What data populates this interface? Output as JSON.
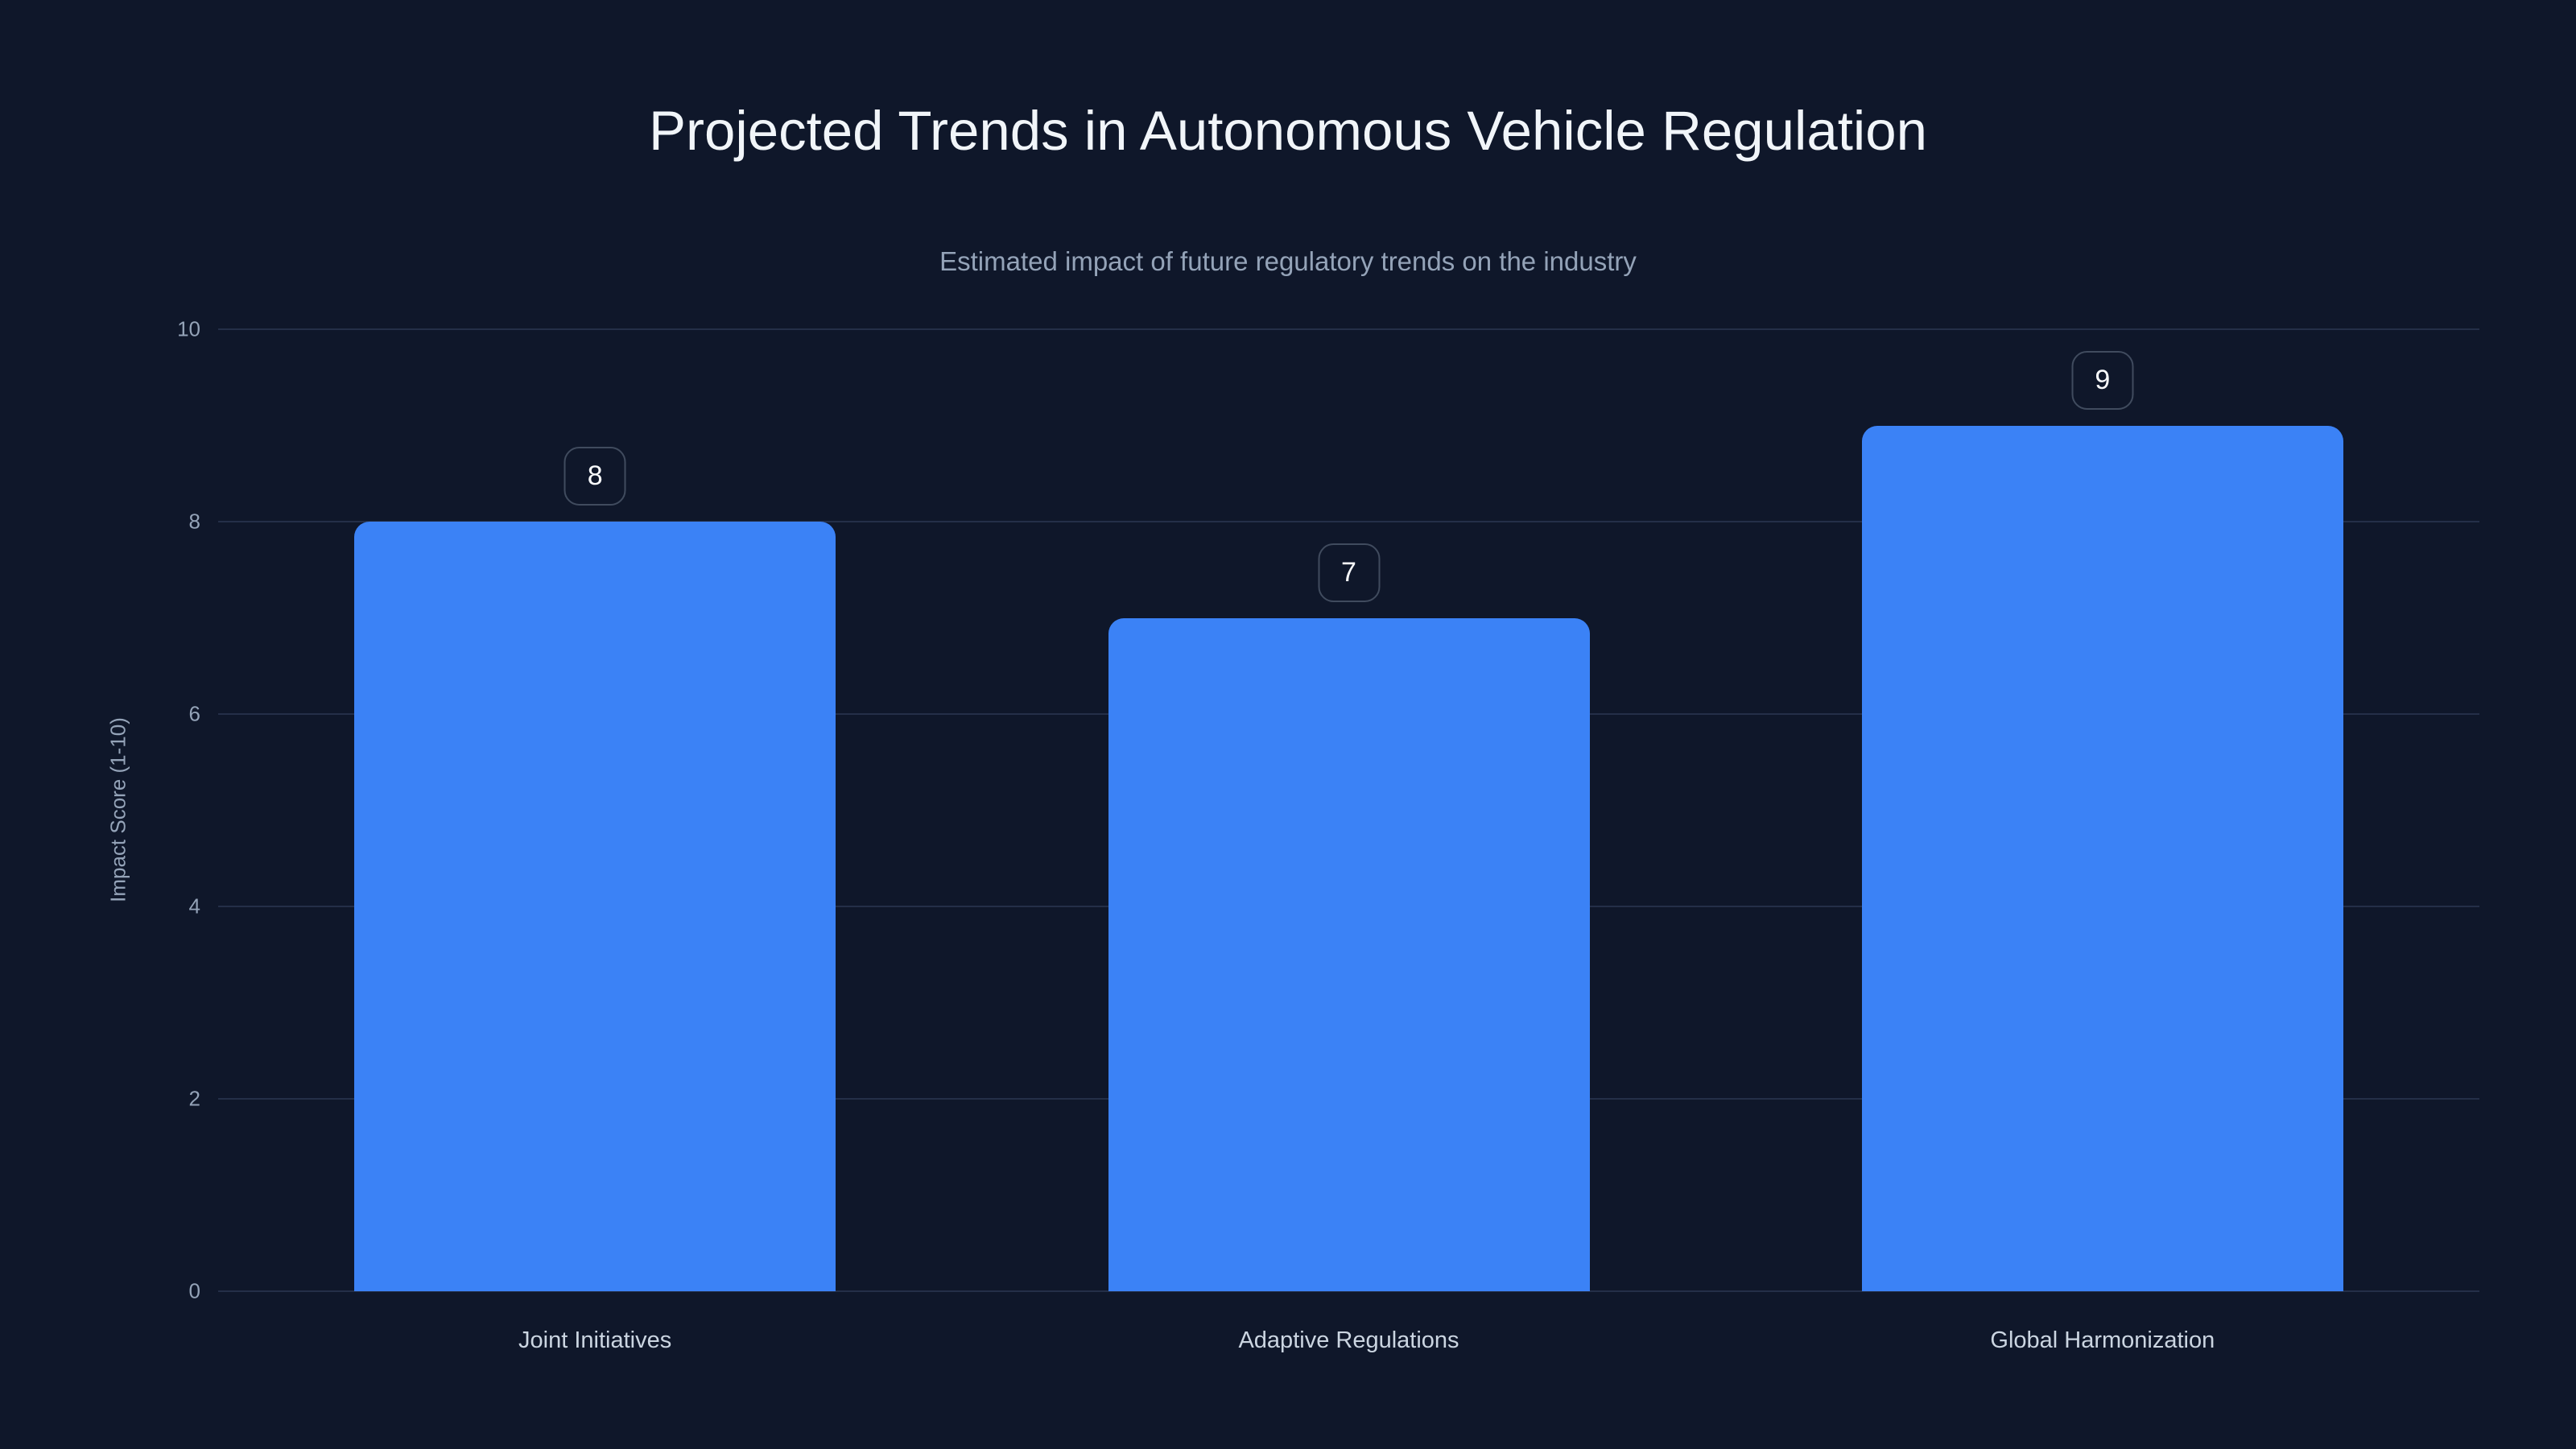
{
  "chart_data": {
    "type": "bar",
    "title": "Projected Trends in Autonomous Vehicle Regulation",
    "subtitle": "Estimated impact of future regulatory trends on the industry",
    "ylabel": "Impact Score (1-10)",
    "xlabel": "",
    "categories": [
      "Joint Initiatives",
      "Adaptive Regulations",
      "Global Harmonization"
    ],
    "values": [
      8,
      7,
      9
    ],
    "data_labels": [
      "8",
      "7",
      "9"
    ],
    "yticks": [
      0,
      2,
      4,
      6,
      8,
      10
    ],
    "ylim": [
      0,
      10
    ],
    "grid": true,
    "legend": "none",
    "colors": {
      "background": "#0f172a",
      "bar": "#3b82f6",
      "title": "#f1f5f9",
      "subtitle": "#94a3b8",
      "tick": "#94a3b8",
      "axis_label": "#94a3b8",
      "category_label": "#cbd5e1",
      "gridline": "#242f48",
      "badge_border": "#404b5e",
      "badge_text": "#f8fafc"
    }
  }
}
